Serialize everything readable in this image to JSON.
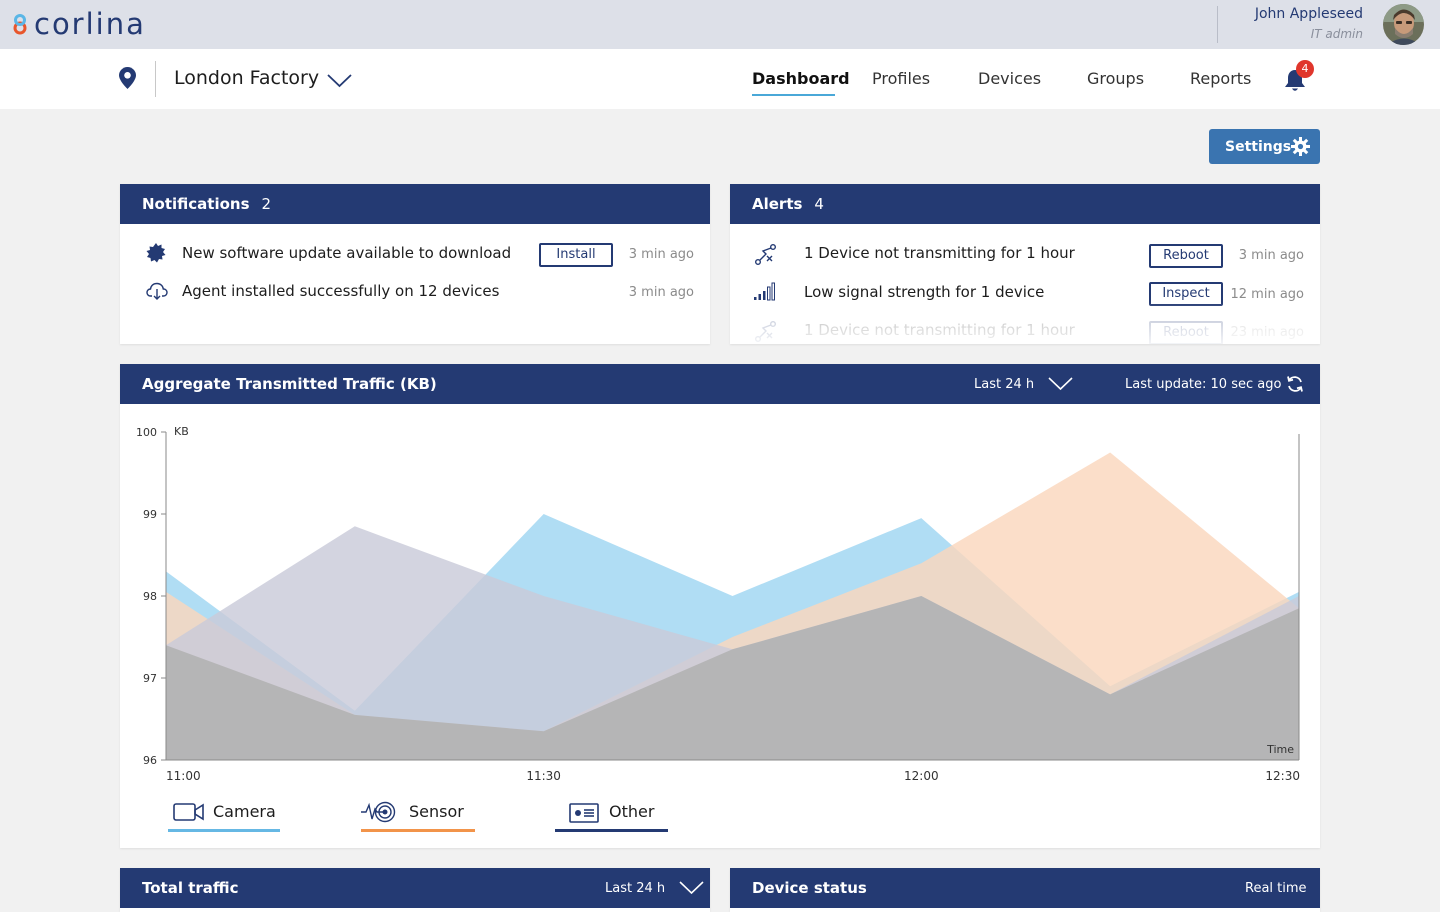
{
  "app": {
    "brand": "corlina"
  },
  "user": {
    "name": "John Appleseed",
    "role": "IT admin"
  },
  "location": {
    "name": "London Factory"
  },
  "nav": {
    "tabs": [
      {
        "label": "Dashboard",
        "active": true
      },
      {
        "label": "Profiles"
      },
      {
        "label": "Devices"
      },
      {
        "label": "Groups"
      },
      {
        "label": "Reports"
      }
    ],
    "notification_count": "4"
  },
  "settings": {
    "label": "Settings"
  },
  "notifications": {
    "title": "Notifications",
    "count": "2",
    "items": [
      {
        "icon": "update-badge-icon",
        "text": "New software update available to download",
        "action": "Install",
        "time": "3 min ago"
      },
      {
        "icon": "cloud-download-icon",
        "text": "Agent installed successfully on 12 devices",
        "time": "3 min ago"
      }
    ]
  },
  "alerts": {
    "title": "Alerts",
    "count": "4",
    "items": [
      {
        "icon": "disconnected-route-icon",
        "text": "1 Device not transmitting for 1 hour",
        "action": "Reboot",
        "time": "3 min ago"
      },
      {
        "icon": "signal-strength-icon",
        "text": "Low signal strength for 1 device",
        "action": "Inspect",
        "time": "12 min ago"
      },
      {
        "icon": "disconnected-route-icon",
        "text": "1 Device not transmitting for 1 hour",
        "action": "Reboot",
        "time": "23 min ago"
      }
    ]
  },
  "traffic": {
    "title": "Aggregate Transmitted Traffic (KB)",
    "range": "Last 24 h",
    "last_update": "Last update: 10 sec ago"
  },
  "chart_data": {
    "type": "area",
    "ylabel": "KB",
    "xlabel": "Time",
    "ylim": [
      96,
      100
    ],
    "yticks": [
      "100",
      "99",
      "98",
      "97",
      "96"
    ],
    "xticks": [
      "11:00",
      "11:30",
      "12:00",
      "12:30"
    ],
    "x": [
      "11:00",
      "11:15",
      "11:30",
      "11:45",
      "12:00",
      "12:15",
      "12:30"
    ],
    "series": [
      {
        "name": "Camera",
        "color": "#9fd6f2",
        "values": [
          98.3,
          96.6,
          99.0,
          98.0,
          98.95,
          96.9,
          98.05
        ]
      },
      {
        "name": "Sensor",
        "color": "#fad7bd",
        "values": [
          98.05,
          96.55,
          96.35,
          97.5,
          98.4,
          99.75,
          97.85
        ]
      },
      {
        "name": "Other",
        "color": "#c9cbd9",
        "values": [
          97.4,
          98.85,
          98.0,
          97.35,
          98.0,
          96.8,
          98.0
        ]
      }
    ],
    "overlap_color": "#b0b0b0",
    "legend_placement": "bottom"
  },
  "legend": [
    {
      "label": "Camera",
      "icon": "camera-icon",
      "color": "#66b8e4"
    },
    {
      "label": "Sensor",
      "icon": "sensor-icon",
      "color": "#f2944a"
    },
    {
      "label": "Other",
      "icon": "device-card-icon",
      "color": "#243a73"
    }
  ],
  "total_traffic": {
    "title": "Total traffic",
    "range": "Last 24 h"
  },
  "device_status": {
    "title": "Device status",
    "mode": "Real time"
  }
}
